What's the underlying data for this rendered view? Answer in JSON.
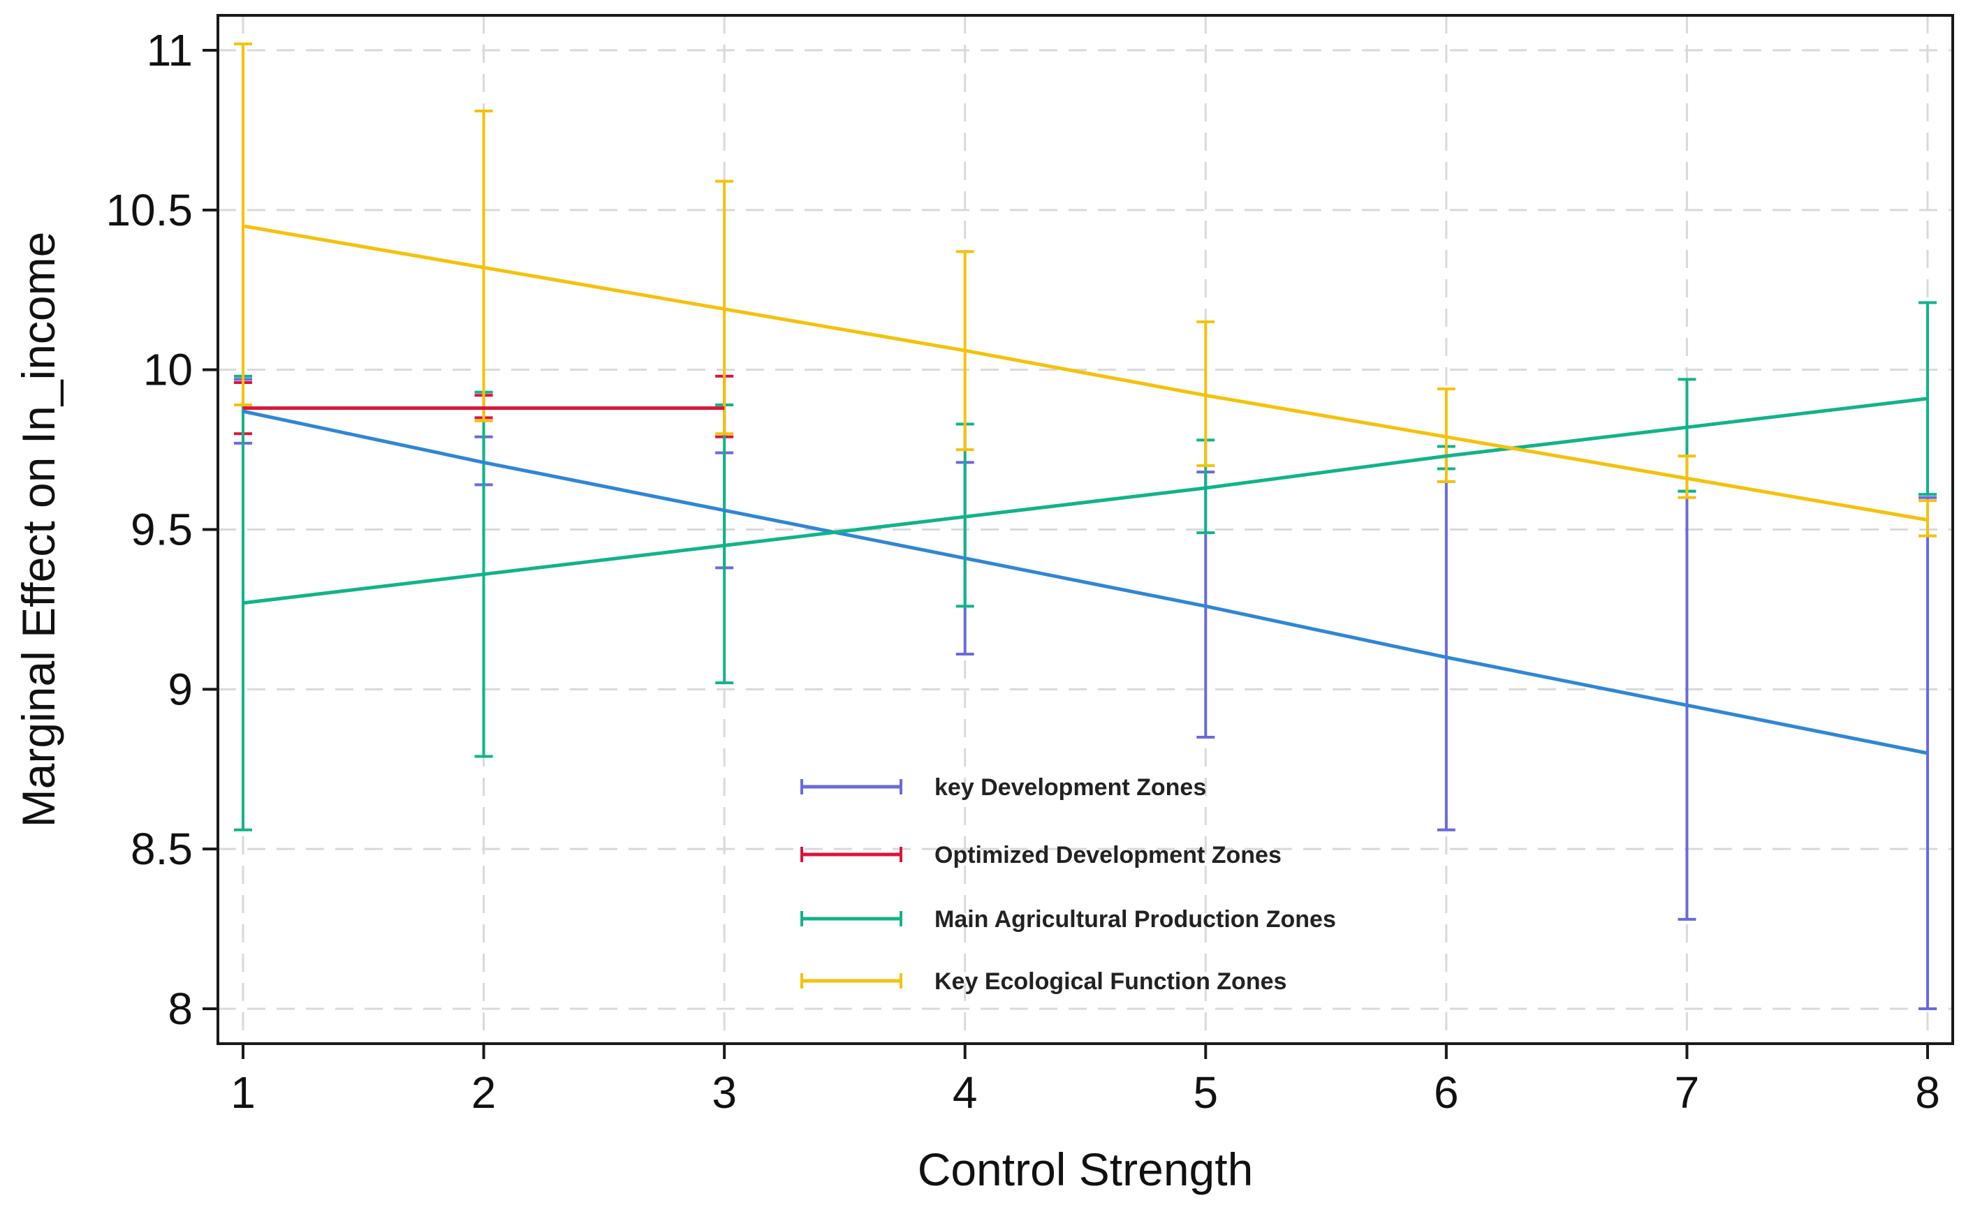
{
  "chart_data": {
    "type": "line",
    "title": "",
    "xlabel": "Control Strength",
    "ylabel": "Marginal Effect on In_income",
    "xlim": [
      1,
      8
    ],
    "ylim": [
      8,
      11
    ],
    "x_ticks": [
      1,
      2,
      3,
      4,
      5,
      6,
      7,
      8
    ],
    "x_tick_labels": [
      "1",
      "2",
      "3",
      "4",
      "5",
      "6",
      "7",
      "8"
    ],
    "y_ticks": [
      8,
      8.5,
      9,
      9.5,
      10,
      10.5,
      11
    ],
    "y_tick_labels": [
      "8",
      "8.5",
      "9",
      "9.5",
      "10",
      "10.5",
      "11"
    ],
    "grid": true,
    "legend_position": "inside-bottom-center",
    "x": [
      1,
      2,
      3,
      4,
      5,
      6,
      7,
      8
    ],
    "series": [
      {
        "name": "key Development Zones",
        "color": "#6a6adc",
        "line_color": "#2f86d6",
        "values": [
          9.87,
          9.71,
          9.56,
          9.41,
          9.26,
          9.1,
          8.95,
          8.8
        ],
        "ci_low": [
          9.77,
          9.64,
          9.38,
          9.11,
          8.85,
          8.56,
          8.28,
          8.0
        ],
        "ci_high": [
          9.97,
          9.79,
          9.74,
          9.71,
          9.68,
          9.65,
          9.62,
          9.6
        ]
      },
      {
        "name": "Optimized Development Zones",
        "color": "#dc143c",
        "line_color": "#dc143c",
        "values": [
          9.88,
          9.88,
          9.88,
          null,
          null,
          null,
          null,
          null
        ],
        "ci_low": [
          9.8,
          9.85,
          9.79,
          null,
          null,
          null,
          null,
          null
        ],
        "ci_high": [
          9.96,
          9.92,
          9.98,
          null,
          null,
          null,
          null,
          null
        ]
      },
      {
        "name": "Main Agricultural Production Zones",
        "color": "#12b38a",
        "line_color": "#12b38a",
        "values": [
          9.27,
          9.36,
          9.45,
          9.54,
          9.63,
          9.73,
          9.82,
          9.91
        ],
        "ci_low": [
          8.56,
          8.79,
          9.02,
          9.26,
          9.49,
          9.69,
          9.62,
          9.61
        ],
        "ci_high": [
          9.98,
          9.93,
          9.89,
          9.83,
          9.78,
          9.76,
          9.97,
          10.21
        ]
      },
      {
        "name": "Key Ecological Function Zones",
        "color": "#f4c20d",
        "line_color": "#f4c20d",
        "values": [
          10.45,
          10.32,
          10.19,
          10.06,
          9.92,
          9.79,
          9.66,
          9.53
        ],
        "ci_low": [
          9.89,
          9.84,
          9.8,
          9.75,
          9.7,
          9.65,
          9.6,
          9.48
        ],
        "ci_high": [
          11.02,
          10.81,
          10.59,
          10.37,
          10.15,
          9.94,
          9.73,
          9.59
        ]
      }
    ]
  }
}
